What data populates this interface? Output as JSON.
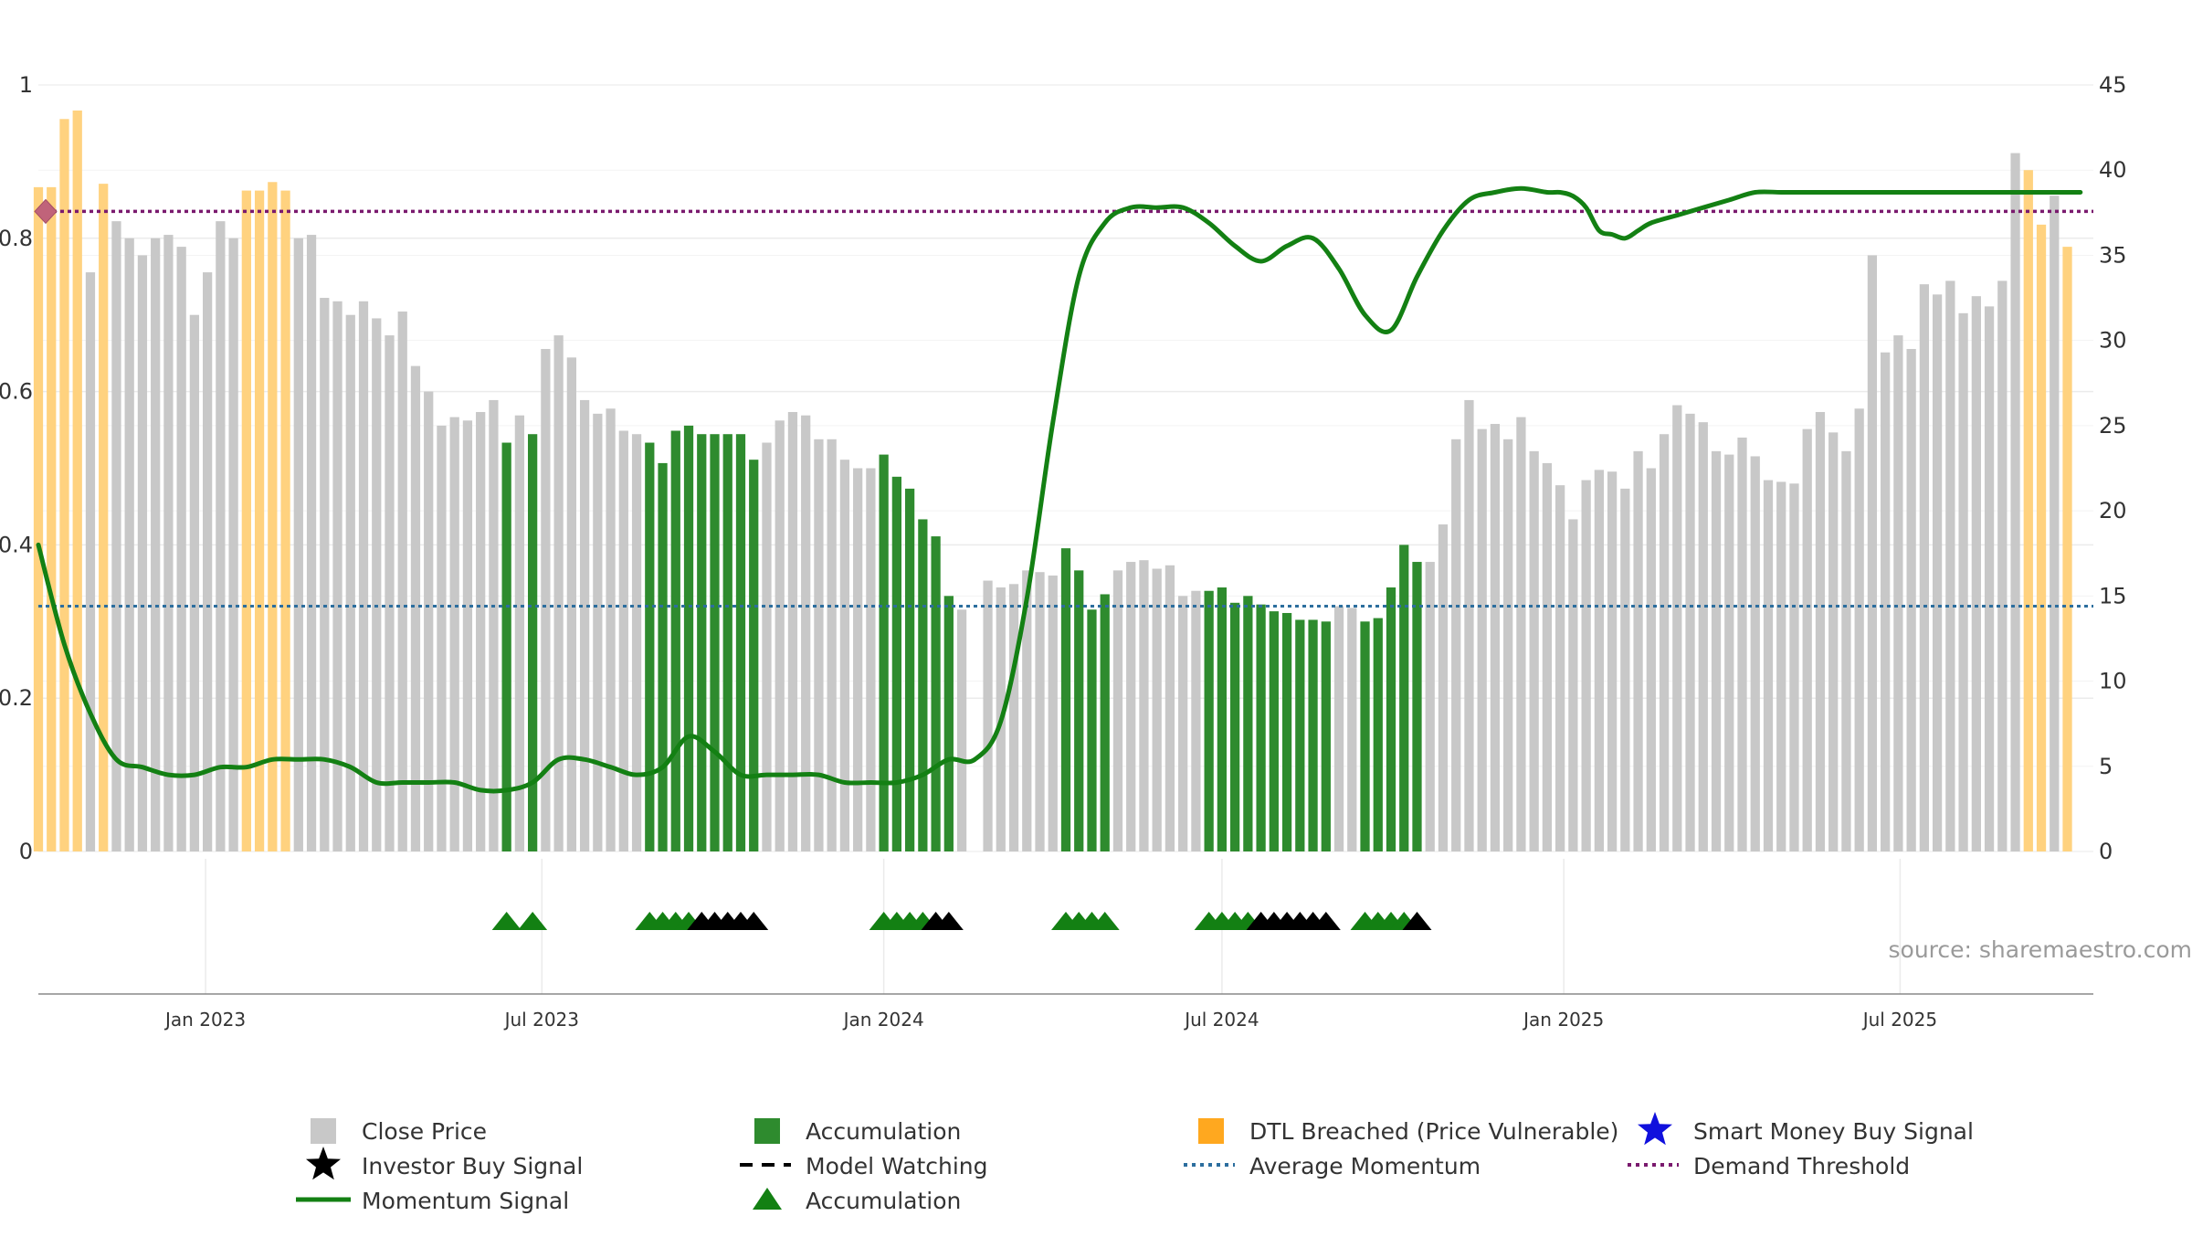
{
  "source_label": "source: sharemaestro.com",
  "legend": {
    "close_price": "Close Price",
    "accumulation_bar": "Accumulation",
    "dtl_breached": "DTL Breached (Price Vulnerable)",
    "smart_money": "Smart Money Buy Signal",
    "investor_buy": "Investor Buy Signal",
    "model_watching": "Model Watching",
    "average_momentum": "Average Momentum",
    "demand_threshold": "Demand Threshold",
    "momentum_signal": "Momentum Signal",
    "accumulation_marker": "Accumulation"
  },
  "colors": {
    "close": "#c8c8c8",
    "accumulation": "#2e8b2e",
    "dtl": "#ffd27f",
    "momentum": "#138013",
    "average_momentum": "#2c6e9e",
    "demand_threshold": "#7a1a6e",
    "investor_star": "#000000",
    "smart_money_star": "#1010dd",
    "marker_green": "#138013",
    "marker_black": "#000000"
  },
  "chart_data": {
    "type": "bar",
    "x_axis": {
      "ticks": [
        "Jan 2023",
        "Jul 2023",
        "Jan 2024",
        "Jul 2024",
        "Jan 2025",
        "Jul 2025"
      ],
      "range": [
        "2022-10-03",
        "2025-10-13"
      ],
      "interval": "weekly"
    },
    "y_left": {
      "range": [
        0,
        1
      ],
      "ticks": [
        "0",
        "0.2",
        "0.4",
        "0.6",
        "0.8",
        "1"
      ]
    },
    "y_right": {
      "range": [
        0,
        45
      ],
      "ticks": [
        "0",
        "5",
        "10",
        "15",
        "20",
        "25",
        "30",
        "35",
        "40",
        "45"
      ]
    },
    "grid": true,
    "close_price": {
      "start_week": "2022-10-03",
      "values": [
        39,
        39,
        43,
        43.5,
        34,
        39.2,
        37,
        36,
        35,
        36,
        36.2,
        35.5,
        31.5,
        34,
        37,
        36,
        38.8,
        38.8,
        39.3,
        38.8,
        36,
        36.2,
        32.5,
        32.3,
        31.5,
        32.3,
        31.3,
        30.3,
        31.7,
        28.5,
        27,
        25,
        25.5,
        25.3,
        25.8,
        26.5,
        24,
        25.6,
        24.5,
        29.5,
        30.3,
        29,
        26.5,
        25.7,
        26,
        24.7,
        24.5,
        24,
        22.8,
        24.7,
        25,
        24.5,
        24.5,
        24.5,
        24.5,
        23,
        24,
        25.3,
        25.8,
        25.6,
        24.2,
        24.2,
        23,
        22.5,
        22.5,
        23.3,
        22,
        21.3,
        19.5,
        18.5,
        15,
        14.2,
        0,
        15.9,
        15.5,
        15.7,
        16.5,
        16.4,
        16.2,
        17.8,
        16.5,
        14.2,
        15.1,
        16.5,
        17,
        17.1,
        16.6,
        16.8,
        15,
        15.3,
        15.3,
        15.5,
        14.6,
        15,
        14.5,
        14.1,
        14,
        13.6,
        13.6,
        13.5,
        14.4,
        14.3,
        13.5,
        13.7,
        15.5,
        18,
        17,
        17,
        19.2,
        24.2,
        26.5,
        24.8,
        25.1,
        24.2,
        25.5,
        23.5,
        22.8,
        21.5,
        19.5,
        21.8,
        22.4,
        22.3,
        21.3,
        23.5,
        22.5,
        24.5,
        26.2,
        25.7,
        25.2,
        23.5,
        23.3,
        24.3,
        23.2,
        21.8,
        21.7,
        21.6,
        24.8,
        25.8,
        24.6,
        23.5,
        26,
        35,
        29.3,
        30.3,
        29.5,
        33.3,
        32.7,
        33.5,
        31.6,
        32.6,
        32,
        33.5,
        41,
        40,
        36.8,
        38.5,
        35.5
      ]
    },
    "bar_status_runs": [
      {
        "status": "dtl",
        "weeks": "0-3"
      },
      {
        "status": "close",
        "weeks": "4"
      },
      {
        "status": "dtl",
        "weeks": "5"
      },
      {
        "status": "close",
        "weeks": "6-15"
      },
      {
        "status": "dtl",
        "weeks": "16-19"
      },
      {
        "status": "close",
        "weeks": "20-35"
      },
      {
        "status": "accumulation",
        "weeks": "36"
      },
      {
        "status": "close",
        "weeks": "37"
      },
      {
        "status": "accumulation",
        "weeks": "38"
      },
      {
        "status": "close",
        "weeks": "39-46"
      },
      {
        "status": "accumulation",
        "weeks": "47-55"
      },
      {
        "status": "close",
        "weeks": "56-64"
      },
      {
        "status": "accumulation",
        "weeks": "65-70"
      },
      {
        "status": "close",
        "weeks": "71-78"
      },
      {
        "status": "accumulation",
        "weeks": "79-82"
      },
      {
        "status": "close",
        "weeks": "83-89"
      },
      {
        "status": "accumulation",
        "weeks": "90-99"
      },
      {
        "status": "close",
        "weeks": "100-101"
      },
      {
        "status": "accumulation",
        "weeks": "102-106"
      },
      {
        "status": "close",
        "weeks": "107-152"
      },
      {
        "status": "dtl",
        "weeks": "153-154"
      },
      {
        "status": "close",
        "weeks": "155"
      },
      {
        "status": "dtl",
        "weeks": "156"
      },
      {
        "status": "close",
        "weeks": "157"
      }
    ],
    "momentum_signal": {
      "x": [
        0,
        2,
        4,
        6,
        8,
        10,
        12,
        14,
        16,
        18,
        20,
        22,
        24,
        26,
        28,
        30,
        32,
        34,
        36,
        38,
        40,
        42,
        44,
        46,
        48,
        50,
        52,
        54,
        56,
        58,
        60,
        62,
        64,
        66,
        68,
        70,
        72,
        74,
        76,
        78,
        80,
        82,
        84,
        86,
        88,
        90,
        92,
        94,
        96,
        98,
        100,
        102,
        104,
        106,
        108,
        110,
        112,
        114,
        116,
        117,
        118,
        119,
        120,
        121,
        122,
        123,
        124,
        126,
        128,
        130,
        132,
        134,
        136,
        138,
        140,
        142,
        144,
        146,
        148,
        150,
        152,
        153,
        154,
        155,
        156,
        157
      ],
      "y": [
        0.4,
        0.27,
        0.18,
        0.12,
        0.11,
        0.1,
        0.1,
        0.11,
        0.11,
        0.12,
        0.12,
        0.12,
        0.11,
        0.09,
        0.09,
        0.09,
        0.09,
        0.08,
        0.08,
        0.09,
        0.12,
        0.12,
        0.11,
        0.1,
        0.11,
        0.15,
        0.13,
        0.1,
        0.1,
        0.1,
        0.1,
        0.09,
        0.09,
        0.09,
        0.1,
        0.12,
        0.12,
        0.17,
        0.33,
        0.56,
        0.75,
        0.82,
        0.84,
        0.84,
        0.84,
        0.82,
        0.79,
        0.77,
        0.79,
        0.8,
        0.76,
        0.7,
        0.68,
        0.75,
        0.81,
        0.85,
        0.86,
        0.865,
        0.86,
        0.86,
        0.855,
        0.84,
        0.81,
        0.805,
        0.8,
        0.81,
        0.82,
        0.83,
        0.84,
        0.85,
        0.86,
        0.86,
        0.86,
        0.86,
        0.86,
        0.86,
        0.86,
        0.86,
        0.86,
        0.86,
        0.86,
        0.86,
        0.86,
        0.86,
        0.86,
        0.86
      ]
    },
    "average_momentum": 0.32,
    "demand_threshold": 0.835,
    "signal_markers": [
      {
        "type": "accumulation",
        "weeks": [
          36,
          38
        ]
      },
      {
        "type": "accumulation",
        "weeks": [
          47,
          48,
          49,
          50
        ]
      },
      {
        "type": "investor_buy",
        "weeks": [
          51,
          52,
          53,
          54,
          55
        ]
      },
      {
        "type": "accumulation",
        "weeks": [
          65,
          66,
          67,
          68
        ]
      },
      {
        "type": "investor_buy",
        "weeks": [
          69,
          70
        ]
      },
      {
        "type": "accumulation",
        "weeks": [
          79,
          80,
          81,
          82
        ]
      },
      {
        "type": "accumulation",
        "weeks": [
          90,
          91,
          92,
          93
        ]
      },
      {
        "type": "investor_buy",
        "weeks": [
          94,
          95,
          96,
          97,
          98,
          99
        ]
      },
      {
        "type": "accumulation",
        "weeks": [
          102,
          103,
          104,
          105
        ]
      },
      {
        "type": "investor_buy",
        "weeks": [
          106
        ]
      }
    ]
  }
}
